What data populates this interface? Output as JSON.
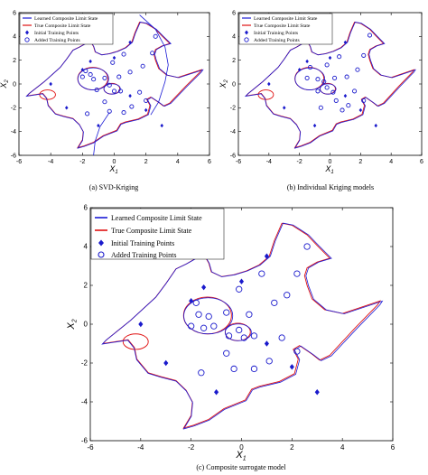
{
  "chart_data": [
    {
      "type": "scatter",
      "caption": "(a) SVD-Kriging",
      "xlabel": "X",
      "xlabel_sub": "1",
      "ylabel": "X",
      "ylabel_sub": "2",
      "xlim": [
        -6,
        6
      ],
      "ylim": [
        -6,
        6
      ],
      "xticks": [
        "-6",
        "-4",
        "-2",
        "0",
        "2",
        "4",
        "6"
      ],
      "yticks": [
        "-6",
        "-4",
        "-2",
        "0",
        "2",
        "4",
        "6"
      ],
      "legend_position": "top-left",
      "legend": [
        "Learned Composite Limit State",
        "True Composite Limit State",
        "Initial Training Points",
        "Added Training Points"
      ],
      "series": [
        {
          "name": "Initial Training Points",
          "kind": "diamond",
          "color": "#1a1acc",
          "points": [
            [
              -4,
              0
            ],
            [
              -3,
              -2
            ],
            [
              -2,
              1.2
            ],
            [
              -1.5,
              1.9
            ],
            [
              -1,
              -3.5
            ],
            [
              0,
              2.2
            ],
            [
              1,
              -1
            ],
            [
              1,
              3.5
            ],
            [
              2,
              -2.2
            ],
            [
              3,
              -3.5
            ]
          ]
        },
        {
          "name": "Added Training Points",
          "kind": "circle",
          "color": "#1a1acc",
          "points": [
            [
              -1.8,
              1.1
            ],
            [
              -1.3,
              0.4
            ],
            [
              -1.5,
              0.8
            ],
            [
              -2.0,
              0.6
            ],
            [
              -1.1,
              -0.5
            ],
            [
              -0.6,
              0.5
            ],
            [
              0.3,
              0.6
            ],
            [
              -0.3,
              -0.1
            ],
            [
              0.0,
              -0.6
            ],
            [
              0.4,
              -0.6
            ],
            [
              -0.6,
              -1.5
            ],
            [
              -0.3,
              -2.3
            ],
            [
              0.6,
              -2.4
            ],
            [
              1.1,
              -1.9
            ],
            [
              1.6,
              -0.7
            ],
            [
              1.8,
              1.5
            ],
            [
              2.4,
              2.6
            ],
            [
              2.6,
              4.0
            ],
            [
              0.6,
              2.5
            ],
            [
              1.0,
              1.0
            ],
            [
              -0.1,
              1.8
            ],
            [
              2.0,
              -1.4
            ],
            [
              -1.7,
              -2.5
            ]
          ]
        }
      ]
    },
    {
      "type": "scatter",
      "caption": "(b) Individual Kriging models",
      "xlabel": "X",
      "xlabel_sub": "1",
      "ylabel": "X",
      "ylabel_sub": "2",
      "xlim": [
        -6,
        6
      ],
      "ylim": [
        -6,
        6
      ],
      "xticks": [
        "-6",
        "-4",
        "-2",
        "0",
        "2",
        "4",
        "6"
      ],
      "yticks": [
        "-6",
        "-4",
        "-2",
        "0",
        "2",
        "4",
        "6"
      ],
      "legend_position": "top-left",
      "legend": [
        "Learned Composite Limit State",
        "True Composite Limit State",
        "Initial Training Points",
        "Added Training Points"
      ],
      "series": [
        {
          "name": "Initial Training Points",
          "kind": "diamond",
          "color": "#1a1acc",
          "points": [
            [
              -4,
              0
            ],
            [
              -3,
              -2
            ],
            [
              -2,
              1.2
            ],
            [
              -1.5,
              1.9
            ],
            [
              -1,
              -3.5
            ],
            [
              0,
              2.2
            ],
            [
              1,
              -1
            ],
            [
              1,
              3.5
            ],
            [
              2,
              -2.2
            ],
            [
              3,
              -3.5
            ]
          ]
        },
        {
          "name": "Added Training Points",
          "kind": "circle",
          "color": "#1a1acc",
          "points": [
            [
              -1.3,
              1.4
            ],
            [
              -0.8,
              0.4
            ],
            [
              -1.5,
              0.5
            ],
            [
              -0.8,
              -0.6
            ],
            [
              -0.4,
              0.2
            ],
            [
              0.3,
              0.5
            ],
            [
              -0.2,
              -0.3
            ],
            [
              0.2,
              -0.7
            ],
            [
              0.4,
              -1.4
            ],
            [
              0.8,
              -2.2
            ],
            [
              -0.6,
              -2.0
            ],
            [
              1.2,
              -1.8
            ],
            [
              1.6,
              -0.6
            ],
            [
              1.8,
              1.2
            ],
            [
              2.2,
              2.4
            ],
            [
              2.6,
              4.1
            ],
            [
              0.6,
              2.3
            ],
            [
              1.1,
              0.6
            ],
            [
              -0.2,
              1.6
            ],
            [
              2.2,
              -1.4
            ]
          ]
        }
      ]
    },
    {
      "type": "scatter",
      "caption": "(c) Composite surrogate model",
      "xlabel": "X",
      "xlabel_sub": "1",
      "ylabel": "X",
      "ylabel_sub": "2",
      "xlim": [
        -6,
        6
      ],
      "ylim": [
        -6,
        6
      ],
      "xticks": [
        "-6",
        "-4",
        "-2",
        "0",
        "2",
        "4",
        "6"
      ],
      "yticks": [
        "-6",
        "-4",
        "-2",
        "0",
        "2",
        "4",
        "6"
      ],
      "legend_position": "top-left",
      "legend": [
        "Learned Composite Limit State",
        "True Composite Limit State",
        "Initial Training Points",
        "Added Training Points"
      ],
      "series": [
        {
          "name": "Initial Training Points",
          "kind": "diamond",
          "color": "#1a1acc",
          "points": [
            [
              -4,
              0
            ],
            [
              -3,
              -2
            ],
            [
              -2,
              1.2
            ],
            [
              -1.5,
              1.9
            ],
            [
              -1,
              -3.5
            ],
            [
              0,
              2.2
            ],
            [
              1,
              -1
            ],
            [
              1,
              3.5
            ],
            [
              2,
              -2.2
            ],
            [
              3,
              -3.5
            ]
          ]
        },
        {
          "name": "Added Training Points",
          "kind": "circle",
          "color": "#1a1acc",
          "points": [
            [
              -1.8,
              1.1
            ],
            [
              -1.3,
              0.4
            ],
            [
              -1.7,
              0.5
            ],
            [
              -2.0,
              -0.1
            ],
            [
              -1.5,
              -0.2
            ],
            [
              -1.1,
              -0.1
            ],
            [
              -0.6,
              0.6
            ],
            [
              -0.5,
              -0.6
            ],
            [
              0.3,
              0.5
            ],
            [
              -0.1,
              -0.3
            ],
            [
              0.1,
              -0.7
            ],
            [
              0.5,
              -0.6
            ],
            [
              -0.6,
              -1.5
            ],
            [
              -0.3,
              -2.3
            ],
            [
              0.5,
              -2.3
            ],
            [
              1.1,
              -1.9
            ],
            [
              1.6,
              -0.7
            ],
            [
              1.8,
              1.5
            ],
            [
              2.2,
              2.6
            ],
            [
              2.6,
              4.0
            ],
            [
              0.8,
              2.6
            ],
            [
              1.3,
              1.1
            ],
            [
              -0.1,
              1.8
            ],
            [
              2.2,
              -1.4
            ],
            [
              -1.6,
              -2.5
            ]
          ]
        }
      ]
    }
  ]
}
